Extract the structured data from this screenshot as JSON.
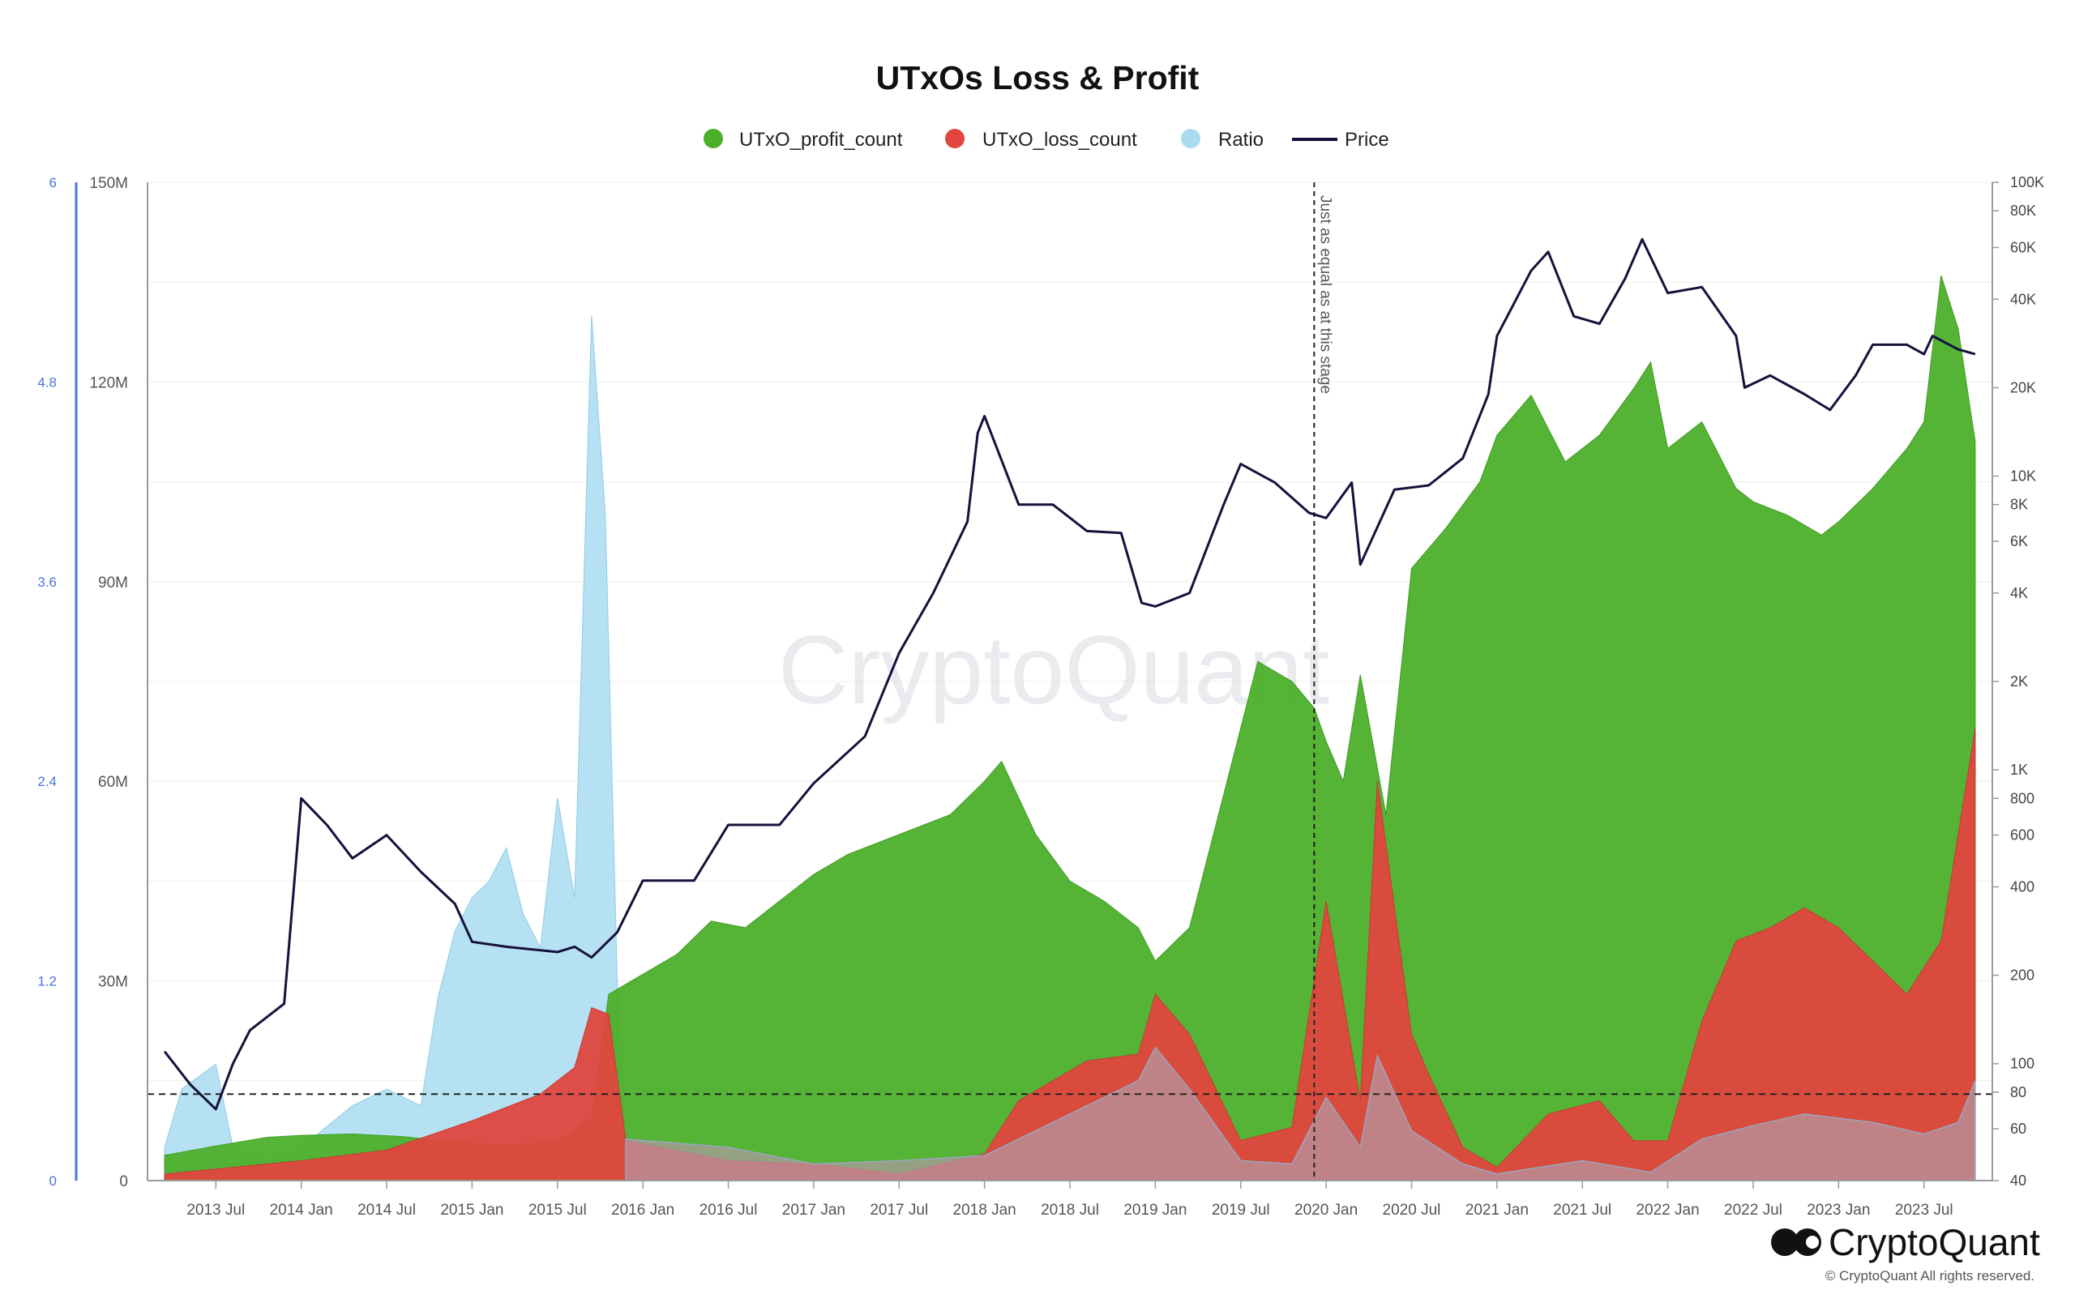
{
  "chart_data": {
    "type": "area",
    "title": "UTxOs Loss & Profit",
    "legend": [
      {
        "name": "UTxO_profit_count",
        "color": "#4caf2a",
        "marker": "dot"
      },
      {
        "name": "UTxO_loss_count",
        "color": "#e0463e",
        "marker": "dot"
      },
      {
        "name": "Ratio",
        "color": "#a9dcf0",
        "marker": "dot"
      },
      {
        "name": "Price",
        "color": "#14123d",
        "marker": "line"
      }
    ],
    "x_labels": [
      "2013 Jul",
      "2014 Jan",
      "2014 Jul",
      "2015 Jan",
      "2015 Jul",
      "2016 Jan",
      "2016 Jul",
      "2017 Jan",
      "2017 Jul",
      "2018 Jan",
      "2018 Jul",
      "2019 Jan",
      "2019 Jul",
      "2020 Jan",
      "2020 Jul",
      "2021 Jan",
      "2021 Jul",
      "2022 Jan",
      "2022 Jul",
      "2023 Jan",
      "2023 Jul"
    ],
    "x_range": [
      2013.1,
      2023.9
    ],
    "y_left": {
      "ticks": [
        "0",
        "30M",
        "60M",
        "90M",
        "120M",
        "150M"
      ],
      "range": [
        0,
        150000000
      ]
    },
    "y_ratio": {
      "ticks": [
        "0",
        "1.2",
        "2.4",
        "3.6",
        "4.8",
        "6"
      ],
      "range": [
        0,
        6
      ]
    },
    "y_price": {
      "scale": "log",
      "ticks": [
        "40",
        "60",
        "80",
        "100",
        "200",
        "400",
        "600",
        "800",
        "1K",
        "2K",
        "4K",
        "6K",
        "8K",
        "10K",
        "20K",
        "40K",
        "60K",
        "80K",
        "100K"
      ],
      "tick_values": [
        40,
        60,
        80,
        100,
        200,
        400,
        600,
        800,
        1000,
        2000,
        4000,
        6000,
        8000,
        10000,
        20000,
        40000,
        60000,
        80000,
        100000
      ],
      "range": [
        40,
        100000
      ]
    },
    "annotation_vertical": {
      "text": "Just as equal as at this stage",
      "x": 2019.93
    },
    "annotation_horizontal": {
      "ratio": 0.52
    },
    "series": [
      {
        "name": "UTxO_profit_count",
        "axis": "left",
        "points": [
          [
            2013.2,
            3.8
          ],
          [
            2013.5,
            5.2
          ],
          [
            2013.8,
            6.5
          ],
          [
            2014.0,
            6.8
          ],
          [
            2014.3,
            7.0
          ],
          [
            2014.6,
            6.6
          ],
          [
            2014.9,
            5.8
          ],
          [
            2015.2,
            5.4
          ],
          [
            2015.5,
            5.8
          ],
          [
            2015.7,
            9.5
          ],
          [
            2015.8,
            28
          ],
          [
            2016.0,
            31
          ],
          [
            2016.2,
            34
          ],
          [
            2016.4,
            39
          ],
          [
            2016.6,
            38
          ],
          [
            2016.8,
            42
          ],
          [
            2017.0,
            46
          ],
          [
            2017.2,
            49
          ],
          [
            2017.4,
            51
          ],
          [
            2017.6,
            53
          ],
          [
            2017.8,
            55
          ],
          [
            2018.0,
            60
          ],
          [
            2018.1,
            63
          ],
          [
            2018.3,
            52
          ],
          [
            2018.5,
            45
          ],
          [
            2018.7,
            42
          ],
          [
            2018.9,
            38
          ],
          [
            2019.0,
            33
          ],
          [
            2019.2,
            38
          ],
          [
            2019.4,
            58
          ],
          [
            2019.6,
            78
          ],
          [
            2019.8,
            75
          ],
          [
            2019.93,
            71
          ],
          [
            2020.0,
            66
          ],
          [
            2020.1,
            60
          ],
          [
            2020.2,
            76
          ],
          [
            2020.35,
            55
          ],
          [
            2020.5,
            92
          ],
          [
            2020.7,
            98
          ],
          [
            2020.9,
            105
          ],
          [
            2021.0,
            112
          ],
          [
            2021.2,
            118
          ],
          [
            2021.4,
            108
          ],
          [
            2021.6,
            112
          ],
          [
            2021.8,
            119
          ],
          [
            2021.9,
            123
          ],
          [
            2022.0,
            110
          ],
          [
            2022.2,
            114
          ],
          [
            2022.4,
            104
          ],
          [
            2022.5,
            102
          ],
          [
            2022.7,
            100
          ],
          [
            2022.9,
            97
          ],
          [
            2023.0,
            99
          ],
          [
            2023.2,
            104
          ],
          [
            2023.4,
            110
          ],
          [
            2023.5,
            114
          ],
          [
            2023.6,
            136
          ],
          [
            2023.7,
            128
          ],
          [
            2023.8,
            111
          ]
        ]
      },
      {
        "name": "UTxO_loss_count",
        "axis": "left",
        "points": [
          [
            2013.2,
            1.0
          ],
          [
            2013.6,
            2.0
          ],
          [
            2014.0,
            3.0
          ],
          [
            2014.5,
            4.6
          ],
          [
            2015.0,
            9.0
          ],
          [
            2015.4,
            13.0
          ],
          [
            2015.6,
            17.0
          ],
          [
            2015.7,
            26.0
          ],
          [
            2015.8,
            25.0
          ],
          [
            2015.9,
            6.0
          ],
          [
            2016.5,
            3.0
          ],
          [
            2017.0,
            2.5
          ],
          [
            2017.5,
            1.0
          ],
          [
            2018.0,
            4.0
          ],
          [
            2018.2,
            12.0
          ],
          [
            2018.6,
            18.0
          ],
          [
            2018.9,
            19.0
          ],
          [
            2019.0,
            28.0
          ],
          [
            2019.2,
            22.0
          ],
          [
            2019.5,
            6.0
          ],
          [
            2019.8,
            8.0
          ],
          [
            2020.0,
            42.0
          ],
          [
            2020.2,
            12.0
          ],
          [
            2020.3,
            60.0
          ],
          [
            2020.5,
            22.0
          ],
          [
            2020.6,
            16.0
          ],
          [
            2020.8,
            5.0
          ],
          [
            2021.0,
            2.0
          ],
          [
            2021.3,
            10.0
          ],
          [
            2021.6,
            12.0
          ],
          [
            2021.8,
            6.0
          ],
          [
            2022.0,
            6.0
          ],
          [
            2022.2,
            24.0
          ],
          [
            2022.4,
            36.0
          ],
          [
            2022.6,
            38.0
          ],
          [
            2022.8,
            41.0
          ],
          [
            2023.0,
            38.0
          ],
          [
            2023.2,
            33.0
          ],
          [
            2023.4,
            28.0
          ],
          [
            2023.6,
            36.0
          ],
          [
            2023.8,
            68.0
          ]
        ]
      },
      {
        "name": "Ratio",
        "axis": "ratio",
        "points": [
          [
            2013.2,
            0.2
          ],
          [
            2013.3,
            0.55
          ],
          [
            2013.5,
            0.7
          ],
          [
            2013.6,
            0.2
          ],
          [
            2013.8,
            0.12
          ],
          [
            2014.0,
            0.2
          ],
          [
            2014.3,
            0.45
          ],
          [
            2014.5,
            0.55
          ],
          [
            2014.7,
            0.45
          ],
          [
            2014.8,
            1.1
          ],
          [
            2014.9,
            1.5
          ],
          [
            2015.0,
            1.7
          ],
          [
            2015.1,
            1.8
          ],
          [
            2015.2,
            2.0
          ],
          [
            2015.3,
            1.6
          ],
          [
            2015.4,
            1.4
          ],
          [
            2015.5,
            2.3
          ],
          [
            2015.6,
            1.7
          ],
          [
            2015.7,
            5.2
          ],
          [
            2015.78,
            4.0
          ],
          [
            2015.85,
            1.2
          ],
          [
            2015.9,
            0.25
          ],
          [
            2016.5,
            0.2
          ],
          [
            2017.0,
            0.1
          ],
          [
            2017.5,
            0.12
          ],
          [
            2018.0,
            0.15
          ],
          [
            2018.3,
            0.3
          ],
          [
            2018.6,
            0.45
          ],
          [
            2018.9,
            0.6
          ],
          [
            2019.0,
            0.8
          ],
          [
            2019.2,
            0.55
          ],
          [
            2019.5,
            0.12
          ],
          [
            2019.8,
            0.1
          ],
          [
            2020.0,
            0.5
          ],
          [
            2020.2,
            0.2
          ],
          [
            2020.3,
            0.75
          ],
          [
            2020.5,
            0.3
          ],
          [
            2020.8,
            0.1
          ],
          [
            2021.0,
            0.04
          ],
          [
            2021.5,
            0.12
          ],
          [
            2021.9,
            0.05
          ],
          [
            2022.2,
            0.25
          ],
          [
            2022.5,
            0.33
          ],
          [
            2022.8,
            0.4
          ],
          [
            2023.2,
            0.35
          ],
          [
            2023.5,
            0.28
          ],
          [
            2023.7,
            0.35
          ],
          [
            2023.8,
            0.6
          ]
        ]
      },
      {
        "name": "Price",
        "axis": "price",
        "points": [
          [
            2013.2,
            110
          ],
          [
            2013.35,
            85
          ],
          [
            2013.5,
            70
          ],
          [
            2013.6,
            100
          ],
          [
            2013.7,
            130
          ],
          [
            2013.9,
            160
          ],
          [
            2014.0,
            800
          ],
          [
            2014.15,
            650
          ],
          [
            2014.3,
            500
          ],
          [
            2014.5,
            600
          ],
          [
            2014.7,
            450
          ],
          [
            2014.9,
            350
          ],
          [
            2015.0,
            260
          ],
          [
            2015.2,
            250
          ],
          [
            2015.5,
            240
          ],
          [
            2015.6,
            250
          ],
          [
            2015.7,
            230
          ],
          [
            2015.85,
            280
          ],
          [
            2016.0,
            420
          ],
          [
            2016.3,
            420
          ],
          [
            2016.5,
            650
          ],
          [
            2016.8,
            650
          ],
          [
            2017.0,
            900
          ],
          [
            2017.3,
            1300
          ],
          [
            2017.5,
            2500
          ],
          [
            2017.7,
            4000
          ],
          [
            2017.9,
            7000
          ],
          [
            2017.96,
            14000
          ],
          [
            2018.0,
            16000
          ],
          [
            2018.2,
            8000
          ],
          [
            2018.4,
            8000
          ],
          [
            2018.6,
            6500
          ],
          [
            2018.8,
            6400
          ],
          [
            2018.92,
            3700
          ],
          [
            2019.0,
            3600
          ],
          [
            2019.2,
            4000
          ],
          [
            2019.4,
            8000
          ],
          [
            2019.5,
            11000
          ],
          [
            2019.7,
            9500
          ],
          [
            2019.9,
            7500
          ],
          [
            2020.0,
            7200
          ],
          [
            2020.15,
            9500
          ],
          [
            2020.2,
            5000
          ],
          [
            2020.4,
            9000
          ],
          [
            2020.6,
            9300
          ],
          [
            2020.8,
            11500
          ],
          [
            2020.95,
            19000
          ],
          [
            2021.0,
            30000
          ],
          [
            2021.2,
            50000
          ],
          [
            2021.3,
            58000
          ],
          [
            2021.45,
            35000
          ],
          [
            2021.6,
            33000
          ],
          [
            2021.75,
            47000
          ],
          [
            2021.85,
            64000
          ],
          [
            2022.0,
            42000
          ],
          [
            2022.2,
            44000
          ],
          [
            2022.4,
            30000
          ],
          [
            2022.45,
            20000
          ],
          [
            2022.6,
            22000
          ],
          [
            2022.8,
            19000
          ],
          [
            2022.95,
            16800
          ],
          [
            2023.1,
            22000
          ],
          [
            2023.2,
            28000
          ],
          [
            2023.4,
            28000
          ],
          [
            2023.5,
            26000
          ],
          [
            2023.55,
            30000
          ],
          [
            2023.7,
            27000
          ],
          [
            2023.8,
            26000
          ]
        ]
      }
    ]
  },
  "watermark": "CryptoQuant",
  "brand": {
    "name": "CryptoQuant",
    "copyright": "© CryptoQuant All rights reserved."
  },
  "colors": {
    "profit": "#4caf2a",
    "loss": "#e0463e",
    "ratio": "#a9dcf0",
    "price": "#14123d",
    "ratio_axis": "#4a74d8"
  }
}
